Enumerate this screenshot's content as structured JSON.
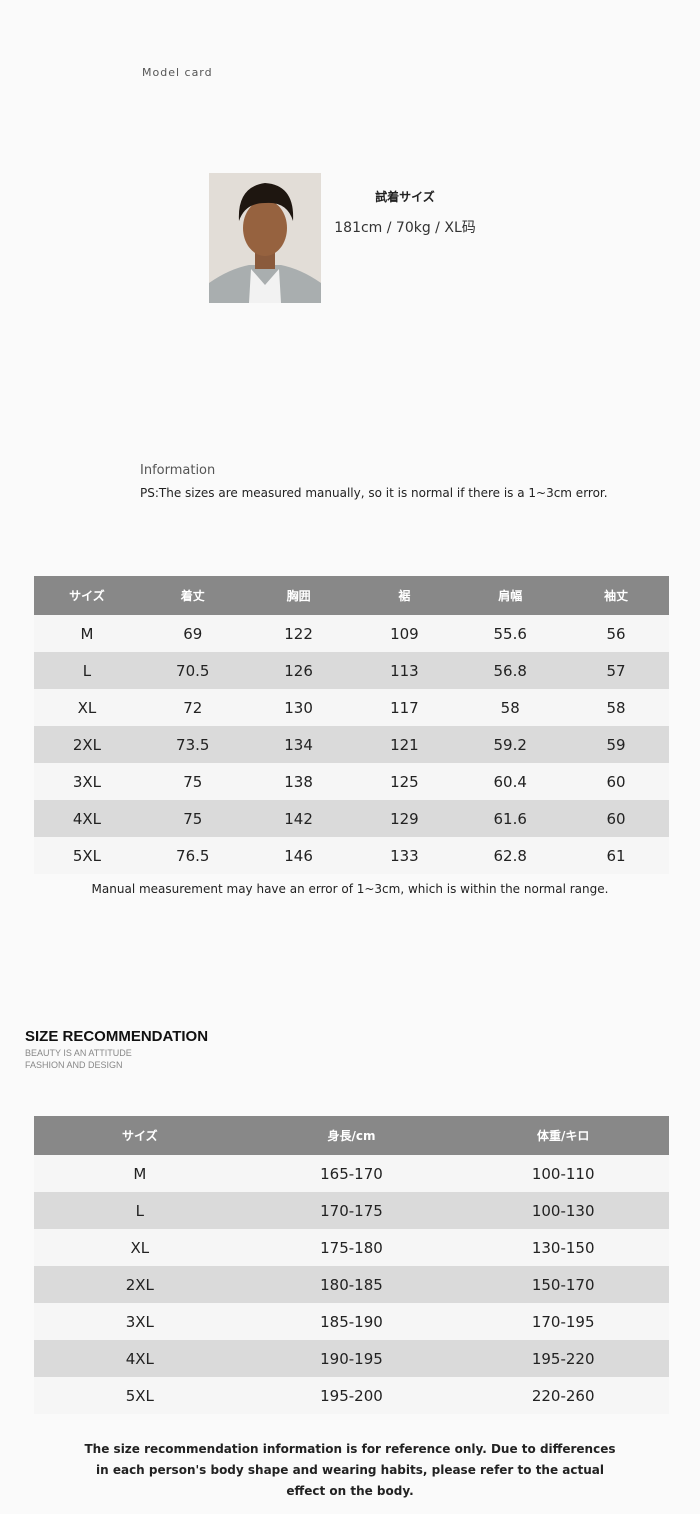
{
  "model_card": {
    "label": "Model card",
    "fit_title": "試着サイズ",
    "fit_value": "181cm / 70kg / XL码"
  },
  "information": {
    "title": "Information",
    "note": "PS:The sizes are measured manually, so it is normal if there is a 1~3cm error."
  },
  "size_table": {
    "headers": [
      "サイズ",
      "着丈",
      "胸囲",
      "裾",
      "肩幅",
      "袖丈"
    ],
    "rows": [
      [
        "M",
        "69",
        "122",
        "109",
        "55.6",
        "56"
      ],
      [
        "L",
        "70.5",
        "126",
        "113",
        "56.8",
        "57"
      ],
      [
        "XL",
        "72",
        "130",
        "117",
        "58",
        "58"
      ],
      [
        "2XL",
        "73.5",
        "134",
        "121",
        "59.2",
        "59"
      ],
      [
        "3XL",
        "75",
        "138",
        "125",
        "60.4",
        "60"
      ],
      [
        "4XL",
        "75",
        "142",
        "129",
        "61.6",
        "60"
      ],
      [
        "5XL",
        "76.5",
        "146",
        "133",
        "62.8",
        "61"
      ]
    ]
  },
  "measure_note": "Manual measurement may have an error of 1~3cm, which is within the normal range.",
  "recommendation": {
    "title": "SIZE RECOMMENDATION",
    "subtitle1": "BEAUTY IS AN ATTITUDE",
    "subtitle2": "FASHION AND DESIGN",
    "headers": [
      "サイズ",
      "身長/cm",
      "体重/キロ"
    ],
    "rows": [
      [
        "M",
        "165-170",
        "100-110"
      ],
      [
        "L",
        "170-175",
        "100-130"
      ],
      [
        "XL",
        "175-180",
        "130-150"
      ],
      [
        "2XL",
        "180-185",
        "150-170"
      ],
      [
        "3XL",
        "185-190",
        "170-195"
      ],
      [
        "4XL",
        "190-195",
        "195-220"
      ],
      [
        "5XL",
        "195-200",
        "220-260"
      ]
    ],
    "note": "The size recommendation information is for reference only. Due to differences in each person's body shape and wearing habits, please refer to the actual effect on the body."
  }
}
